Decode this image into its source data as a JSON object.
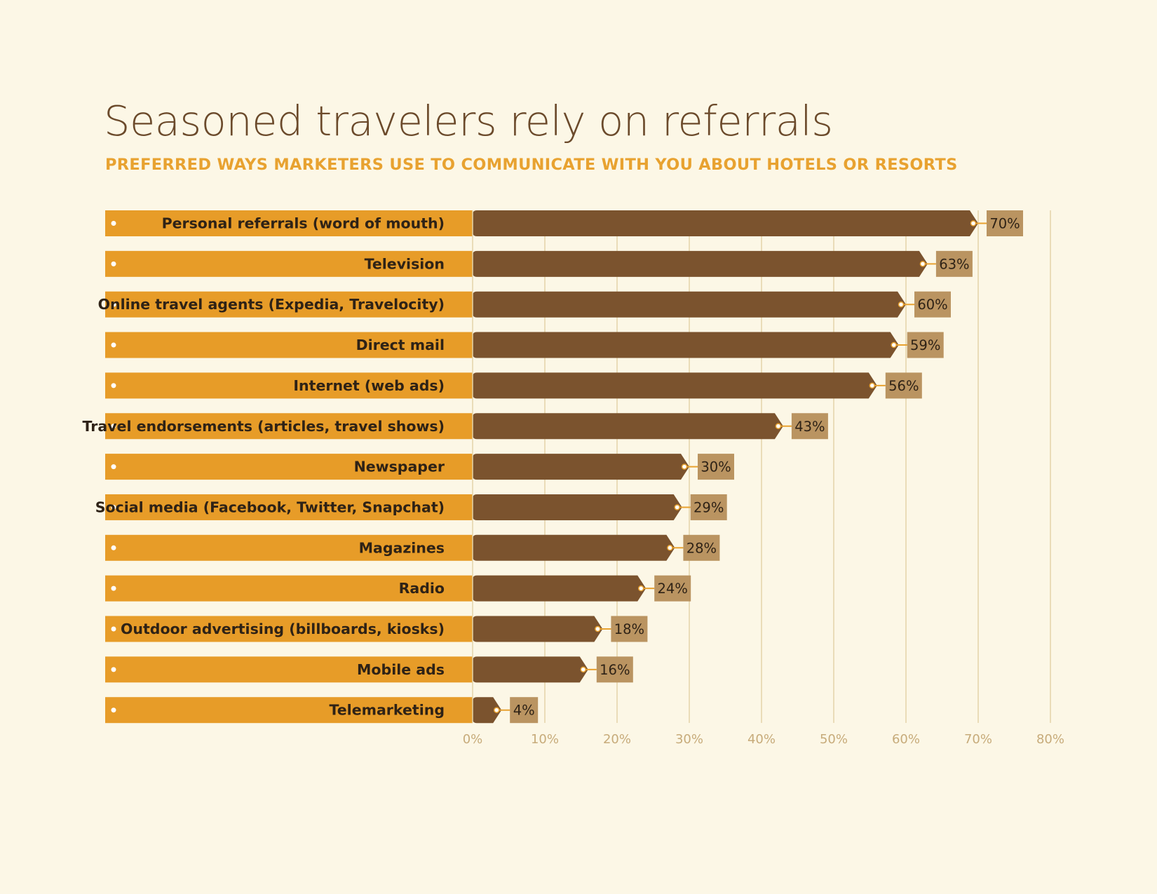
{
  "title": "Seasoned travelers rely on referrals",
  "subtitle": "PREFERRED WAYS MARKETERS USE TO COMMUNICATE WITH YOU ABOUT HOTELS OR RESORTS",
  "colors": {
    "background": "#fcf7e6",
    "label_band": "#e79c28",
    "bar": "#7b532e",
    "value_tag": "#ba9461",
    "connector": "#e8a230",
    "gridline": "#e4d3a8",
    "tick_text": "#c7ab7a",
    "label_text": "#2e2216",
    "title": "#6b4a2b",
    "subtitle": "#e8a230"
  },
  "chart_data": {
    "type": "bar",
    "orientation": "horizontal",
    "categories": [
      "Personal referrals (word of mouth)",
      "Television",
      "Online travel agents (Expedia, Travelocity)",
      "Direct mail",
      "Internet (web ads)",
      "Travel endorsements (articles, travel shows)",
      "Newspaper",
      "Social media (Facebook, Twitter, Snapchat)",
      "Magazines",
      "Radio",
      "Outdoor advertising (billboards, kiosks)",
      "Mobile ads",
      "Telemarketing"
    ],
    "values": [
      70,
      63,
      60,
      59,
      56,
      43,
      30,
      29,
      28,
      24,
      18,
      16,
      4
    ],
    "value_labels": [
      "70%",
      "63%",
      "60%",
      "59%",
      "56%",
      "43%",
      "30%",
      "29%",
      "28%",
      "24%",
      "18%",
      "16%",
      "4%"
    ],
    "xlim": [
      0,
      80
    ],
    "xticks": [
      0,
      10,
      20,
      30,
      40,
      50,
      60,
      70,
      80
    ],
    "xtick_labels": [
      "0%",
      "10%",
      "20%",
      "30%",
      "40%",
      "50%",
      "60%",
      "70%",
      "80%"
    ],
    "grid": true
  }
}
